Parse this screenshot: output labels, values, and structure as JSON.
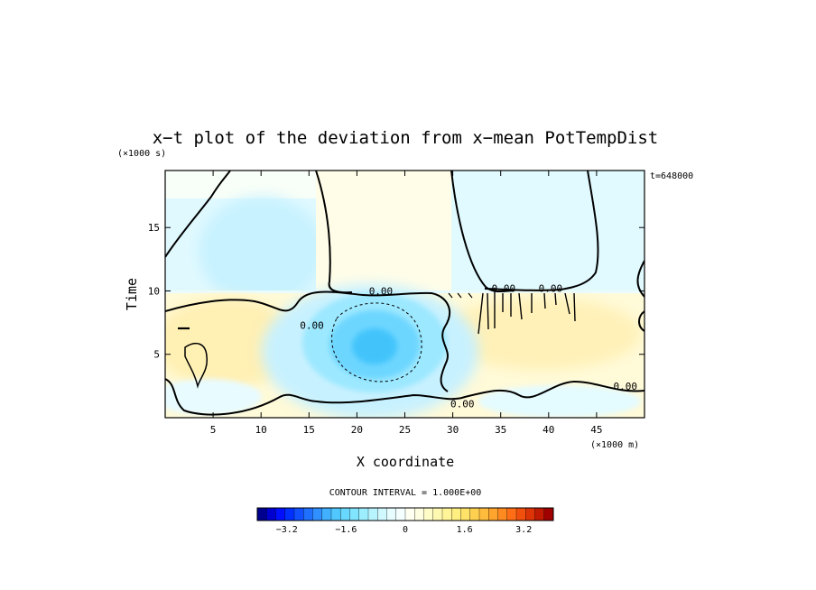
{
  "chart_data": {
    "type": "heatmap",
    "title": "x−t plot of the deviation from x−mean PotTempDist",
    "xlabel": "X coordinate",
    "ylabel": "Time",
    "x_unit": "(×1000 m)",
    "y_unit": "(×1000 s)",
    "time_annotation": "t=648000",
    "xlim": [
      0,
      50
    ],
    "ylim": [
      0,
      19.5
    ],
    "xticks": [
      5,
      10,
      15,
      20,
      25,
      30,
      35,
      40,
      45
    ],
    "xtick_labels": [
      "5",
      "10",
      "15",
      "20",
      "25",
      "30",
      "35",
      "40",
      "45"
    ],
    "yticks": [
      5,
      10,
      15
    ],
    "ytick_labels": [
      "5",
      "10",
      "15"
    ],
    "contour_interval_text": "CONTOUR INTERVAL = 1.000E+00",
    "contour_labels": [
      {
        "text": "0.00",
        "x": 22.5,
        "y": 10.0
      },
      {
        "text": "0.00",
        "x": 15.3,
        "y": 7.3
      },
      {
        "text": "0.00",
        "x": 31.0,
        "y": 1.1
      },
      {
        "text": "0.00",
        "x": 48.0,
        "y": 2.5
      },
      {
        "text": "0.00",
        "x": 35.3,
        "y": 10.2
      },
      {
        "text": "0.00",
        "x": 40.2,
        "y": 10.2
      }
    ],
    "colorbar": {
      "range": [
        -4.0,
        4.0
      ],
      "tick_values": [
        -3.2,
        -1.6,
        0,
        1.6,
        3.2
      ],
      "tick_labels": [
        "−3.2",
        "−1.6",
        "0",
        "1.6",
        "3.2"
      ],
      "colors": [
        "#00008f",
        "#0000cf",
        "#0010ff",
        "#0030ff",
        "#1050ff",
        "#2070ff",
        "#3090ff",
        "#40b0ff",
        "#50c8ff",
        "#68d8ff",
        "#80e4ff",
        "#9ceeff",
        "#b8f4ff",
        "#d0f8ff",
        "#e6fcff",
        "#f4feff",
        "#fffff2",
        "#fffee0",
        "#fffcc8",
        "#fff8b0",
        "#fff498",
        "#ffee80",
        "#ffe268",
        "#ffd050",
        "#ffbc3c",
        "#ffa42c",
        "#ff8a20",
        "#ff6e16",
        "#f0500c",
        "#dc3406",
        "#c01a02",
        "#a00000"
      ]
    }
  }
}
